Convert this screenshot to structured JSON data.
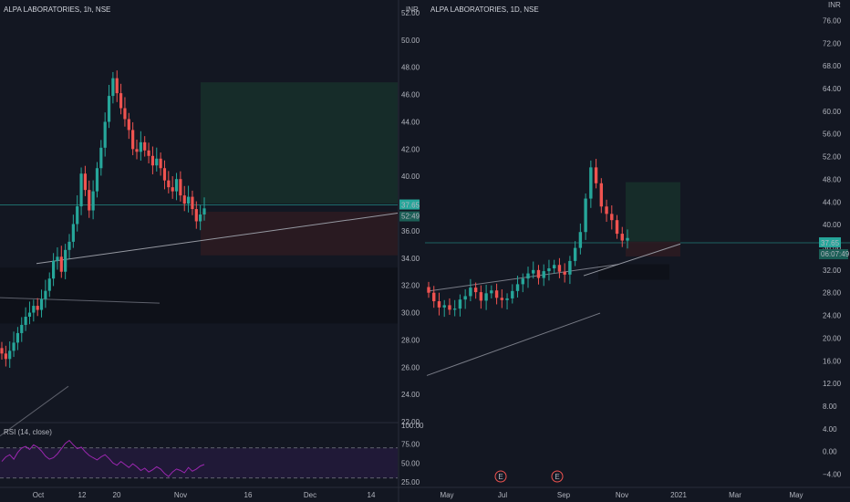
{
  "colors": {
    "background": "#131722",
    "up": "#26a69a",
    "down": "#ef5350",
    "rsi": "#9c27b0",
    "grid": "#1e222d",
    "text": "#b2b5be",
    "badge": "#26a69a"
  },
  "left": {
    "title": "ALPA LABORATORIES, 1h, NSE",
    "currency": "INR",
    "price_ticks": [
      "52.00",
      "50.00",
      "48.00",
      "46.00",
      "44.00",
      "42.00",
      "40.00",
      "38.00",
      "36.00",
      "34.00",
      "32.00",
      "30.00",
      "28.00",
      "26.00",
      "24.00",
      "22.00"
    ],
    "price_badges": [
      "37.65",
      "52:49"
    ],
    "x_labels": [
      "Oct",
      "12",
      "20",
      "Nov",
      "16",
      "Dec",
      "14"
    ],
    "rsi_label": "RSI (14, close)",
    "rsi_ticks": [
      "100.00",
      "75.00",
      "50.00",
      "25.00"
    ]
  },
  "right": {
    "title": "ALPA LABORATORIES, 1D, NSE",
    "currency": "INR",
    "price_ticks": [
      "76.00",
      "72.00",
      "68.00",
      "64.00",
      "60.00",
      "56.00",
      "52.00",
      "48.00",
      "44.00",
      "40.00",
      "36.00",
      "32.00",
      "28.00",
      "24.00",
      "20.00",
      "16.00",
      "12.00",
      "8.00",
      "4.00",
      "0.00",
      "−4.00"
    ],
    "price_badges": [
      "37.65",
      "06:07:49"
    ],
    "x_labels": [
      "May",
      "Jul",
      "Sep",
      "Nov",
      "2021",
      "Mar",
      "May"
    ],
    "events": [
      "E",
      "E"
    ]
  },
  "chart_data": [
    {
      "type": "candlestick",
      "title": "ALPA LABORATORIES, 1h, NSE",
      "y_unit": "INR",
      "ylim": [
        22,
        52
      ],
      "x_labels": [
        "Oct",
        "12",
        "20",
        "Nov",
        "16",
        "Dec",
        "14"
      ],
      "last_price": 37.65,
      "closes": [
        27.0,
        26.6,
        27.2,
        27.8,
        28.5,
        29.1,
        29.7,
        30.0,
        30.5,
        30.2,
        31.0,
        31.6,
        32.5,
        33.8,
        34.1,
        33.0,
        34.6,
        35.2,
        36.5,
        37.8,
        40.2,
        39.0,
        37.5,
        38.9,
        40.6,
        42.1,
        44.0,
        45.9,
        47.2,
        46.1,
        45.0,
        44.2,
        43.4,
        42.0,
        41.8,
        42.5,
        41.9,
        41.5,
        40.8,
        41.3,
        40.6,
        39.7,
        39.2,
        38.9,
        39.8,
        38.6,
        38.0,
        38.5,
        37.6,
        36.7,
        37.2,
        37.65
      ],
      "rsi": {
        "label": "RSI (14, close)",
        "ylim": [
          20,
          100
        ],
        "levels": [
          70,
          30
        ],
        "values": [
          52,
          58,
          61,
          55,
          64,
          70,
          72,
          68,
          74,
          71,
          66,
          59,
          55,
          57,
          62,
          69,
          76,
          80,
          74,
          69,
          71,
          65,
          60,
          57,
          54,
          58,
          61,
          56,
          50,
          47,
          52,
          48,
          44,
          49,
          45,
          40,
          43,
          38,
          41,
          45,
          42,
          36,
          32,
          38,
          42,
          40,
          37,
          44,
          39,
          42,
          46,
          48
        ]
      }
    },
    {
      "type": "candlestick",
      "title": "ALPA LABORATORIES, 1D, NSE",
      "y_unit": "INR",
      "ylim": [
        -6,
        78
      ],
      "x_labels": [
        "May",
        "Jul",
        "Sep",
        "Nov",
        "2021",
        "Mar",
        "May"
      ],
      "last_price": 37.65,
      "closes": [
        28.0,
        26.5,
        25.4,
        25.8,
        25.0,
        25.2,
        26.8,
        27.4,
        28.9,
        28.1,
        26.6,
        27.9,
        28.4,
        27.1,
        26.7,
        27.0,
        28.3,
        29.5,
        30.5,
        31.4,
        32.0,
        30.6,
        31.8,
        32.3,
        32.9,
        31.7,
        31.2,
        33.6,
        35.9,
        38.7,
        44.6,
        50.1,
        47.3,
        43.2,
        41.9,
        40.8,
        38.4,
        37.2,
        37.65
      ]
    }
  ]
}
